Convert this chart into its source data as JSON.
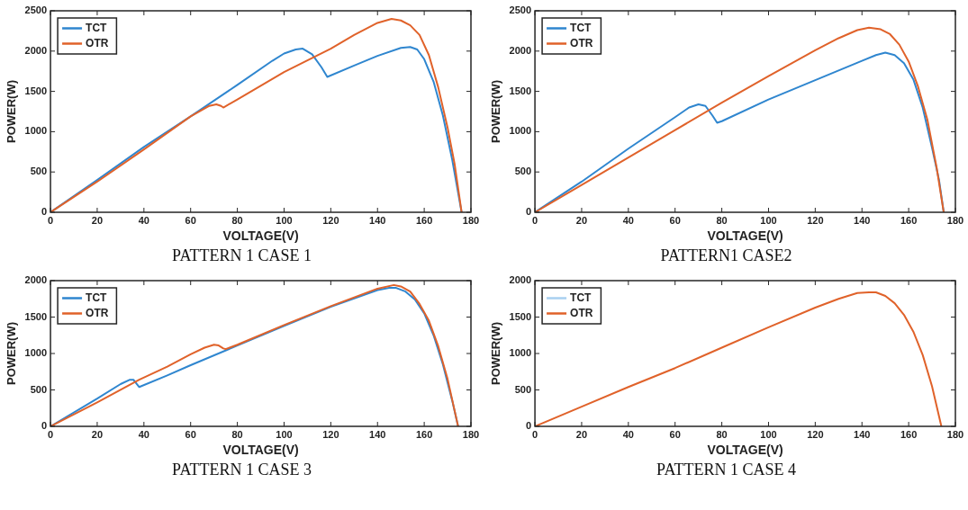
{
  "chart_data": [
    {
      "type": "line",
      "xlabel": "VOLTAGE(V)",
      "ylabel": "POWER(W)",
      "annotations": [
        "PATTERN 1 CASE 1"
      ],
      "xlim": [
        0,
        180
      ],
      "xticks": [
        0,
        20,
        40,
        60,
        80,
        100,
        120,
        140,
        160,
        180
      ],
      "ylim": [
        0,
        2500
      ],
      "yticks": [
        0,
        500,
        1000,
        1500,
        2000,
        2500
      ],
      "grid": false,
      "legend": "top left",
      "marker": "none",
      "line_style": "solid",
      "series": [
        {
          "name": "TCT",
          "color": "#2f86cf",
          "x": [
            0,
            20,
            40,
            60,
            80,
            95,
            100,
            105,
            108,
            112,
            116,
            118.5,
            130,
            140,
            150,
            154,
            157,
            160,
            164,
            168,
            172,
            176
          ],
          "values": [
            0,
            400,
            810,
            1190,
            1580,
            1880,
            1970,
            2020,
            2030,
            1960,
            1800,
            1680,
            1820,
            1940,
            2040,
            2050,
            2020,
            1900,
            1620,
            1200,
            650,
            0
          ]
        },
        {
          "name": "OTR",
          "color": "#e0622a",
          "x": [
            0,
            20,
            40,
            60,
            68,
            71,
            73,
            74,
            80,
            100,
            120,
            130,
            140,
            146,
            150,
            154,
            158,
            162,
            166,
            170,
            173,
            176
          ],
          "values": [
            0,
            380,
            780,
            1190,
            1320,
            1340,
            1320,
            1300,
            1400,
            1740,
            2030,
            2200,
            2350,
            2400,
            2380,
            2320,
            2200,
            1950,
            1550,
            1050,
            600,
            0
          ]
        }
      ]
    },
    {
      "type": "line",
      "xlabel": "VOLTAGE(V)",
      "ylabel": "POWER(W)",
      "annotations": [
        "PATTERN1 CASE2"
      ],
      "xlim": [
        0,
        180
      ],
      "xticks": [
        0,
        20,
        40,
        60,
        80,
        100,
        120,
        140,
        160,
        180
      ],
      "ylim": [
        0,
        2500
      ],
      "yticks": [
        0,
        500,
        1000,
        1500,
        2000,
        2500
      ],
      "grid": false,
      "legend": "top left",
      "marker": "none",
      "line_style": "solid",
      "series": [
        {
          "name": "TCT",
          "color": "#2f86cf",
          "x": [
            0,
            20,
            40,
            60,
            66,
            70,
            73,
            76,
            78,
            80,
            100,
            120,
            140,
            146,
            150,
            154,
            158,
            162,
            166,
            170,
            173,
            175
          ],
          "values": [
            0,
            380,
            790,
            1180,
            1300,
            1340,
            1320,
            1200,
            1110,
            1130,
            1400,
            1640,
            1880,
            1950,
            1980,
            1950,
            1850,
            1650,
            1300,
            800,
            400,
            0
          ]
        },
        {
          "name": "OTR",
          "color": "#e0622a",
          "x": [
            0,
            20,
            40,
            60,
            80,
            100,
            120,
            130,
            138,
            143,
            148,
            152,
            156,
            160,
            164,
            168,
            172,
            175
          ],
          "values": [
            0,
            340,
            680,
            1020,
            1360,
            1690,
            2010,
            2160,
            2260,
            2290,
            2270,
            2210,
            2080,
            1870,
            1560,
            1150,
            550,
            0
          ]
        }
      ]
    },
    {
      "type": "line",
      "xlabel": "VOLTAGE(V)",
      "ylabel": "POWER(W)",
      "annotations": [
        "PATTERN 1 CASE 3"
      ],
      "xlim": [
        0,
        180
      ],
      "xticks": [
        0,
        20,
        40,
        60,
        80,
        100,
        120,
        140,
        160,
        180
      ],
      "ylim": [
        0,
        2000
      ],
      "yticks": [
        0,
        500,
        1000,
        1500,
        2000
      ],
      "grid": false,
      "legend": "top left",
      "marker": "none",
      "line_style": "solid",
      "series": [
        {
          "name": "TCT",
          "color": "#2f86cf",
          "x": [
            0,
            20,
            30,
            34,
            35.5,
            37,
            38,
            50,
            60,
            80,
            100,
            120,
            140,
            145,
            148,
            152,
            156,
            160,
            164,
            168,
            172,
            174.5
          ],
          "values": [
            0,
            380,
            580,
            640,
            640,
            580,
            540,
            700,
            840,
            1110,
            1380,
            1640,
            1870,
            1900,
            1900,
            1850,
            1740,
            1550,
            1250,
            850,
            350,
            0
          ]
        },
        {
          "name": "OTR",
          "color": "#e0622a",
          "x": [
            0,
            20,
            38,
            50,
            60,
            66,
            70,
            72,
            74,
            75,
            80,
            100,
            120,
            140,
            147,
            150,
            154,
            158,
            162,
            166,
            170,
            174.5
          ],
          "values": [
            0,
            330,
            640,
            820,
            990,
            1080,
            1120,
            1110,
            1070,
            1060,
            1120,
            1390,
            1650,
            1890,
            1940,
            1920,
            1850,
            1680,
            1450,
            1100,
            650,
            0
          ]
        }
      ]
    },
    {
      "type": "line",
      "xlabel": "VOLTAGE(V)",
      "ylabel": "POWER(W)",
      "annotations": [
        "PATTERN 1 CASE 4"
      ],
      "xlim": [
        0,
        180
      ],
      "xticks": [
        0,
        20,
        40,
        60,
        80,
        100,
        120,
        140,
        160,
        180
      ],
      "ylim": [
        0,
        2000
      ],
      "yticks": [
        0,
        500,
        1000,
        1500,
        2000
      ],
      "grid": false,
      "legend": "top left",
      "marker": "none",
      "line_style": "solid",
      "series": [
        {
          "name": "TCT",
          "color": "#a9d0f0"
        },
        {
          "name": "OTR",
          "color": "#e0622a",
          "x": [
            0,
            20,
            40,
            60,
            80,
            100,
            120,
            130,
            138,
            143,
            146,
            150,
            154,
            158,
            162,
            166,
            170,
            174
          ],
          "values": [
            0,
            270,
            540,
            800,
            1080,
            1360,
            1630,
            1750,
            1830,
            1840,
            1840,
            1790,
            1690,
            1530,
            1300,
            980,
            550,
            0
          ]
        }
      ]
    }
  ]
}
